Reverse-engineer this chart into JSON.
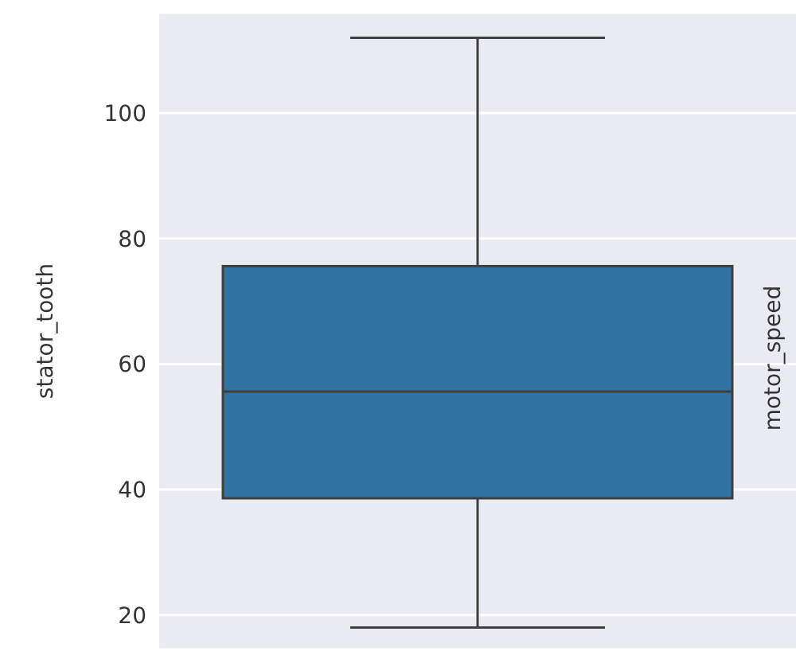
{
  "chart_data": {
    "type": "box",
    "ylabel": "stator_tooth",
    "categories": [
      null
    ],
    "color": "#3274a1",
    "boxes": [
      {
        "low": 18,
        "q1": 38.6,
        "median": 55.6,
        "q3": 75.6,
        "high": 112
      }
    ],
    "ylim": [
      14.5,
      116
    ],
    "yticks": [
      20,
      40,
      60,
      80,
      100
    ],
    "grid": "y",
    "annotations": [
      "motor_speed"
    ]
  }
}
